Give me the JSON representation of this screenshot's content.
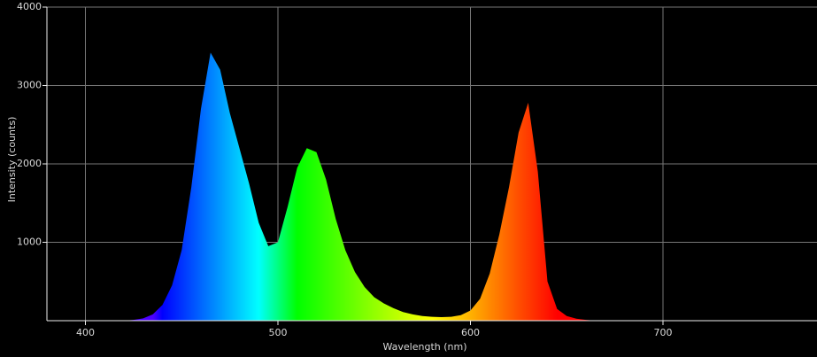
{
  "chart_data": {
    "type": "area",
    "x_label": "Wavelength (nm)",
    "y_label": "Intensity (counts)",
    "x": [
      420,
      425,
      430,
      435,
      440,
      445,
      450,
      455,
      460,
      465,
      470,
      475,
      480,
      485,
      490,
      495,
      500,
      505,
      510,
      515,
      520,
      525,
      530,
      535,
      540,
      545,
      550,
      555,
      560,
      565,
      570,
      575,
      580,
      585,
      590,
      595,
      600,
      605,
      610,
      615,
      620,
      625,
      630,
      635,
      640,
      645,
      650,
      655,
      660,
      665
    ],
    "values": [
      0,
      10,
      30,
      80,
      200,
      450,
      900,
      1700,
      2700,
      3420,
      3200,
      2650,
      2200,
      1750,
      1250,
      950,
      1000,
      1450,
      1950,
      2200,
      2150,
      1800,
      1300,
      900,
      620,
      430,
      300,
      220,
      160,
      110,
      80,
      60,
      50,
      45,
      50,
      70,
      130,
      280,
      600,
      1100,
      1700,
      2400,
      2780,
      1900,
      500,
      150,
      60,
      25,
      10,
      0
    ],
    "xlim": [
      380,
      780
    ],
    "ylim": [
      0,
      4000
    ],
    "xticks": [
      400,
      500,
      600,
      700
    ],
    "yticks": [
      1000,
      2000,
      3000,
      4000
    ],
    "grid": true
  }
}
